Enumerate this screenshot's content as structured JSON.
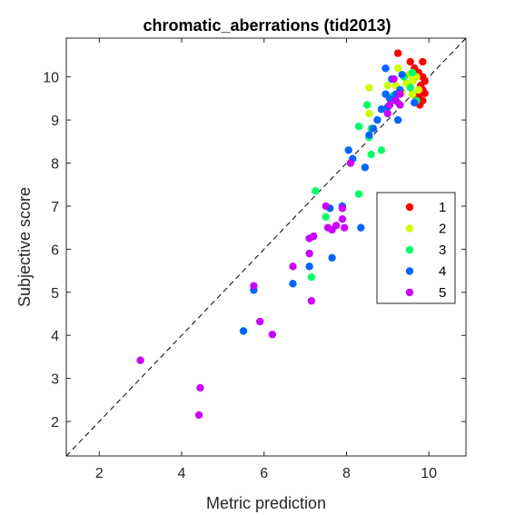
{
  "chart_data": {
    "type": "scatter",
    "title": "chromatic_aberrations (tid2013)",
    "xlabel": "Metric prediction",
    "ylabel": "Subjective score",
    "xlim": [
      1.2,
      10.9
    ],
    "ylim": [
      1.2,
      10.9
    ],
    "xticks": [
      2,
      4,
      6,
      8,
      10
    ],
    "yticks": [
      2,
      3,
      4,
      5,
      6,
      7,
      8,
      9,
      10
    ],
    "grid": false,
    "reference_line": {
      "style": "dashed",
      "from": [
        1.2,
        1.2
      ],
      "to": [
        10.9,
        10.9
      ]
    },
    "legend": {
      "placement": "right"
    },
    "series": [
      {
        "name": "1",
        "color": "#ff0000",
        "points": [
          [
            9.25,
            10.55
          ],
          [
            9.55,
            10.35
          ],
          [
            9.85,
            10.35
          ],
          [
            9.65,
            10.2
          ],
          [
            9.75,
            10.1
          ],
          [
            9.85,
            10.0
          ],
          [
            9.9,
            9.9
          ],
          [
            9.8,
            9.8
          ],
          [
            9.85,
            9.7
          ],
          [
            9.9,
            9.62
          ],
          [
            9.75,
            9.55
          ],
          [
            9.85,
            9.45
          ],
          [
            9.78,
            9.35
          ],
          [
            9.7,
            9.5
          ],
          [
            9.6,
            9.9
          ]
        ]
      },
      {
        "name": "2",
        "color": "#ccff00",
        "points": [
          [
            9.5,
            10.05
          ],
          [
            9.7,
            10.0
          ],
          [
            9.6,
            9.9
          ],
          [
            9.75,
            9.7
          ],
          [
            9.25,
            10.2
          ],
          [
            9.45,
            9.85
          ],
          [
            8.55,
            9.75
          ],
          [
            9.0,
            9.8
          ],
          [
            9.35,
            9.65
          ],
          [
            8.55,
            9.15
          ],
          [
            9.2,
            9.8
          ],
          [
            9.6,
            9.6
          ]
        ]
      },
      {
        "name": "3",
        "color": "#00ff66",
        "points": [
          [
            9.6,
            10.1
          ],
          [
            9.4,
            10.0
          ],
          [
            9.55,
            9.75
          ],
          [
            9.25,
            9.4
          ],
          [
            9.1,
            9.55
          ],
          [
            8.5,
            9.35
          ],
          [
            8.3,
            8.85
          ],
          [
            8.6,
            8.8
          ],
          [
            8.55,
            8.6
          ],
          [
            8.85,
            8.3
          ],
          [
            8.6,
            8.2
          ],
          [
            7.25,
            7.35
          ],
          [
            8.3,
            7.28
          ],
          [
            7.5,
            6.75
          ],
          [
            7.15,
            5.35
          ],
          [
            9.7,
            9.45
          ]
        ]
      },
      {
        "name": "4",
        "color": "#0066ff",
        "points": [
          [
            8.95,
            10.2
          ],
          [
            9.35,
            10.05
          ],
          [
            9.1,
            9.95
          ],
          [
            9.3,
            9.7
          ],
          [
            9.2,
            9.6
          ],
          [
            9.05,
            9.5
          ],
          [
            8.95,
            9.6
          ],
          [
            8.85,
            9.25
          ],
          [
            9.0,
            9.3
          ],
          [
            9.25,
            9.0
          ],
          [
            8.75,
            9.0
          ],
          [
            8.65,
            8.8
          ],
          [
            8.55,
            8.65
          ],
          [
            8.05,
            8.3
          ],
          [
            8.15,
            8.1
          ],
          [
            8.45,
            7.9
          ],
          [
            7.9,
            7.0
          ],
          [
            7.6,
            6.95
          ],
          [
            8.35,
            6.5
          ],
          [
            7.1,
            5.6
          ],
          [
            7.65,
            5.8
          ],
          [
            6.7,
            5.2
          ],
          [
            5.75,
            5.05
          ],
          [
            5.5,
            4.1
          ],
          [
            9.65,
            9.4
          ]
        ]
      },
      {
        "name": "5",
        "color": "#cc00ff",
        "points": [
          [
            9.15,
            9.95
          ],
          [
            9.3,
            9.6
          ],
          [
            9.2,
            9.45
          ],
          [
            9.3,
            9.35
          ],
          [
            9.05,
            9.35
          ],
          [
            9.0,
            9.15
          ],
          [
            8.1,
            8.0
          ],
          [
            7.5,
            7.0
          ],
          [
            7.9,
            6.95
          ],
          [
            7.75,
            6.55
          ],
          [
            7.55,
            6.5
          ],
          [
            7.65,
            6.45
          ],
          [
            7.9,
            6.7
          ],
          [
            7.95,
            6.5
          ],
          [
            7.1,
            6.25
          ],
          [
            7.2,
            6.3
          ],
          [
            7.1,
            5.9
          ],
          [
            6.7,
            5.6
          ],
          [
            7.15,
            4.8
          ],
          [
            5.75,
            5.15
          ],
          [
            5.9,
            4.32
          ],
          [
            6.2,
            4.02
          ],
          [
            3.0,
            3.42
          ],
          [
            4.45,
            2.78
          ],
          [
            4.42,
            2.15
          ]
        ]
      }
    ]
  }
}
